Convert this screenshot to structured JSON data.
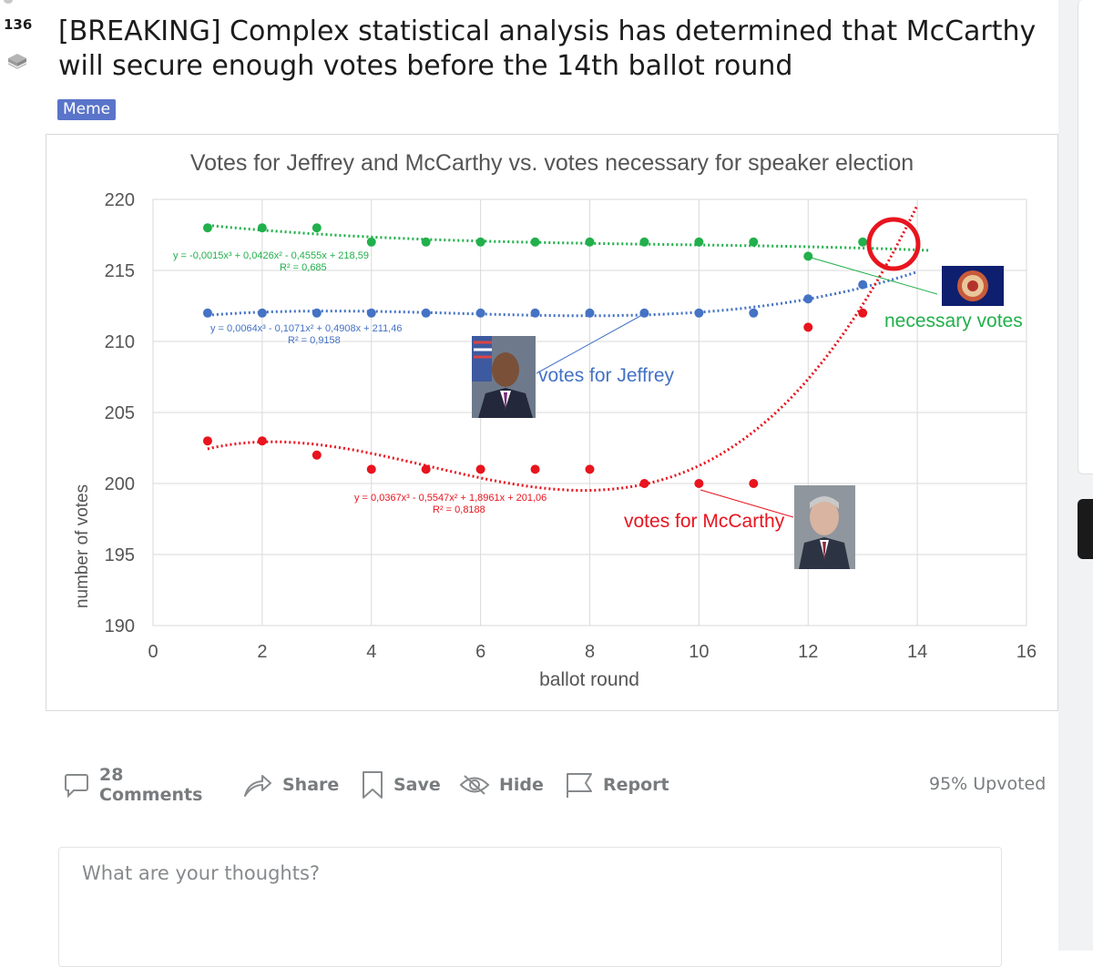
{
  "post": {
    "score": "136",
    "title": "[BREAKING] Complex statistical analysis has determined that McCarthy will secure enough votes before the 14th ballot round",
    "flair": "Meme"
  },
  "actions": {
    "comments": "28 Comments",
    "share": "Share",
    "save": "Save",
    "hide": "Hide",
    "report": "Report",
    "upvoted": "95% Upvoted"
  },
  "comment_box": {
    "placeholder": "What are your thoughts?"
  },
  "colors": {
    "green": "#21b04b",
    "blue": "#4472c4",
    "red": "#e8141e",
    "grey_text": "#787c7e",
    "flair": "#5a74c9"
  },
  "chart_data": {
    "type": "scatter",
    "title": "Votes for Jeffrey and McCarthy vs. votes necessary for speaker election",
    "xlabel": "ballot round",
    "ylabel": "number of votes",
    "xlim": [
      0,
      16
    ],
    "ylim": [
      190,
      220
    ],
    "xticks": [
      "0",
      "2",
      "4",
      "6",
      "8",
      "10",
      "12",
      "14",
      "16"
    ],
    "yticks": [
      "190",
      "195",
      "200",
      "205",
      "210",
      "215",
      "220"
    ],
    "grid": true,
    "series": [
      {
        "name": "necessary votes",
        "color": "#21b04b",
        "x": [
          1,
          2,
          3,
          4,
          5,
          6,
          7,
          8,
          9,
          10,
          11,
          12,
          13
        ],
        "y": [
          218,
          218,
          218,
          217,
          217,
          217,
          217,
          217,
          217,
          217,
          217,
          216,
          217
        ],
        "trend": [
          -0.0015,
          0.0426,
          -0.4555,
          218.59
        ],
        "trend_end": 14.2,
        "equation": "y = -0,0015x³ + 0,0426x² - 0,4555x + 218,59",
        "r2": "R² = 0,685"
      },
      {
        "name": "votes for Jeffrey",
        "color": "#4472c4",
        "x": [
          1,
          2,
          3,
          4,
          5,
          6,
          7,
          8,
          9,
          10,
          11,
          12,
          13
        ],
        "y": [
          212,
          212,
          212,
          212,
          212,
          212,
          212,
          212,
          212,
          212,
          212,
          213,
          214
        ],
        "trend": [
          0.0064,
          -0.1071,
          0.4908,
          211.46
        ],
        "trend_end": 14,
        "equation": "y = 0,0064x³ - 0,1071x² + 0,4908x + 211,46",
        "r2": "R² = 0,9158"
      },
      {
        "name": "votes for McCarthy",
        "color": "#e8141e",
        "x": [
          1,
          2,
          3,
          4,
          5,
          6,
          7,
          8,
          9,
          10,
          11,
          12,
          13
        ],
        "y": [
          203,
          203,
          202,
          201,
          201,
          201,
          201,
          201,
          200,
          200,
          200,
          211,
          212
        ],
        "trend": [
          0.0367,
          -0.5547,
          1.8961,
          201.06
        ],
        "trend_end": 14,
        "equation": "y = 0,0367x³ - 0,5547x² + 1,8961x + 201,06",
        "r2": "R² = 0,8188"
      }
    ],
    "annotations": [
      "votes for Jeffrey",
      "votes for McCarthy",
      "necessary votes"
    ]
  }
}
